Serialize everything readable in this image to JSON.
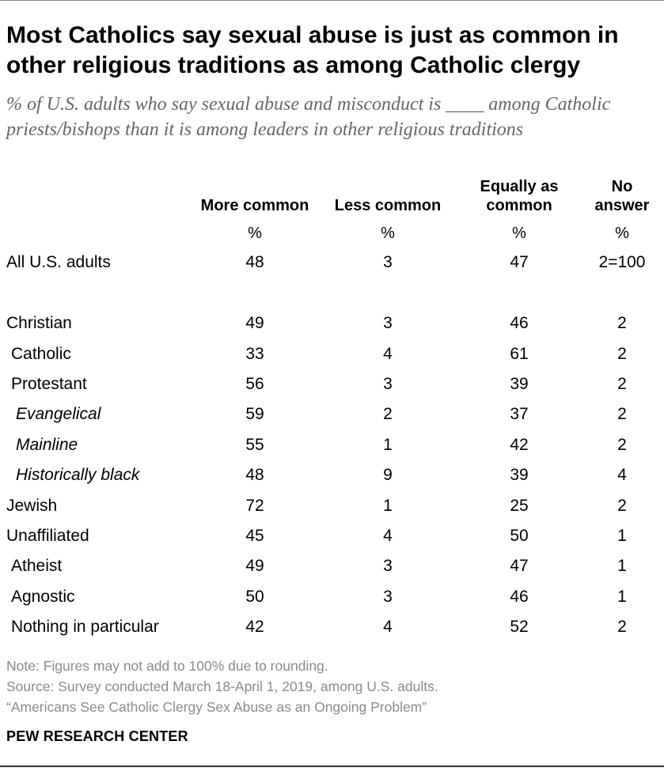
{
  "title": "Most Catholics say sexual abuse is just as common in other religious traditions as among Catholic clergy",
  "subtitle": "% of U.S. adults who say sexual abuse and misconduct is ____ among Catholic priests/bishops than it is among leaders in other religious traditions",
  "chart_data": {
    "type": "table",
    "columns": [
      {
        "key": "more",
        "label_lines": [
          "More common"
        ],
        "unit": "%"
      },
      {
        "key": "less",
        "label_lines": [
          "Less common"
        ],
        "unit": "%"
      },
      {
        "key": "equal",
        "label_lines": [
          "Equally as",
          "common"
        ],
        "unit": "%"
      },
      {
        "key": "noanswer",
        "label_lines": [
          "No",
          "answer"
        ],
        "unit": "%"
      }
    ],
    "rows": [
      {
        "label": "All U.S. adults",
        "indent": 0,
        "values": [
          "48",
          "3",
          "47",
          "2=100"
        ]
      },
      {
        "label": "Christian",
        "indent": 0,
        "values": [
          "49",
          "3",
          "46",
          "2"
        ]
      },
      {
        "label": "Catholic",
        "indent": 1,
        "values": [
          "33",
          "4",
          "61",
          "2"
        ]
      },
      {
        "label": "Protestant",
        "indent": 1,
        "values": [
          "56",
          "3",
          "39",
          "2"
        ]
      },
      {
        "label": "Evangelical",
        "indent": 2,
        "values": [
          "59",
          "2",
          "37",
          "2"
        ]
      },
      {
        "label": "Mainline",
        "indent": 2,
        "values": [
          "55",
          "1",
          "42",
          "2"
        ]
      },
      {
        "label": "Historically black",
        "indent": 2,
        "values": [
          "48",
          "9",
          "39",
          "4"
        ]
      },
      {
        "label": "Jewish",
        "indent": 0,
        "values": [
          "72",
          "1",
          "25",
          "2"
        ]
      },
      {
        "label": "Unaffiliated",
        "indent": 0,
        "values": [
          "45",
          "4",
          "50",
          "1"
        ]
      },
      {
        "label": "Atheist",
        "indent": 1,
        "values": [
          "49",
          "3",
          "47",
          "1"
        ]
      },
      {
        "label": "Agnostic",
        "indent": 1,
        "values": [
          "50",
          "3",
          "46",
          "1"
        ]
      },
      {
        "label": "Nothing in particular",
        "indent": 1,
        "values": [
          "42",
          "4",
          "52",
          "2"
        ]
      }
    ]
  },
  "notes": {
    "note": "Note: Figures may not add to 100% due to rounding.",
    "source": "Source: Survey conducted March 18-April 1, 2019, among U.S. adults.",
    "report": "“Americans See Catholic Clergy Sex Abuse as an Ongoing Problem”"
  },
  "brand": "PEW RESEARCH CENTER"
}
